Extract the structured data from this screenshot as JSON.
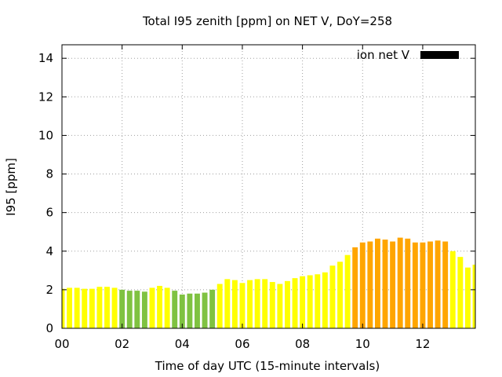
{
  "chart_data": {
    "type": "bar",
    "title": "Total I95 zenith [ppm] on NET V, DoY=258",
    "xlabel": "Time of day UTC (15-minute intervals)",
    "ylabel": "I95 [ppm]",
    "xlim": [
      0,
      13.75
    ],
    "ylim": [
      0,
      14.7
    ],
    "xticks": [
      "00",
      "02",
      "04",
      "06",
      "08",
      "10",
      "12"
    ],
    "xtick_values": [
      0,
      2,
      4,
      6,
      8,
      10,
      12
    ],
    "yticks": [
      0,
      2,
      4,
      6,
      8,
      10,
      12,
      14
    ],
    "grid": true,
    "legend": {
      "label": "ion net V",
      "color": "#000000",
      "placement": "top-right"
    },
    "bar_interval_hours": 0.25,
    "colors": {
      "yellow": "#ffff00",
      "green": "#7fc241",
      "orange": "#ffa500"
    },
    "x": [
      0.0,
      0.25,
      0.5,
      0.75,
      1.0,
      1.25,
      1.5,
      1.75,
      2.0,
      2.25,
      2.5,
      2.75,
      3.0,
      3.25,
      3.5,
      3.75,
      4.0,
      4.25,
      4.5,
      4.75,
      5.0,
      5.25,
      5.5,
      5.75,
      6.0,
      6.25,
      6.5,
      6.75,
      7.0,
      7.25,
      7.5,
      7.75,
      8.0,
      8.25,
      8.5,
      8.75,
      9.0,
      9.25,
      9.5,
      9.75,
      10.0,
      10.25,
      10.5,
      10.75,
      11.0,
      11.25,
      11.5,
      11.75,
      12.0,
      12.25,
      12.5,
      12.75,
      13.0,
      13.25,
      13.5,
      13.75
    ],
    "values": [
      2.05,
      2.1,
      2.1,
      2.05,
      2.05,
      2.15,
      2.15,
      2.1,
      2.0,
      1.95,
      1.95,
      1.9,
      2.1,
      2.2,
      2.1,
      1.95,
      1.75,
      1.8,
      1.8,
      1.85,
      2.0,
      2.3,
      2.55,
      2.5,
      2.35,
      2.5,
      2.55,
      2.55,
      2.4,
      2.3,
      2.45,
      2.6,
      2.7,
      2.75,
      2.8,
      2.9,
      3.25,
      3.45,
      3.8,
      4.2,
      4.45,
      4.5,
      4.65,
      4.6,
      4.5,
      4.7,
      4.65,
      4.45,
      4.45,
      4.5,
      4.55,
      4.5,
      4.0,
      3.7,
      3.15,
      3.3
    ],
    "bar_colors": [
      "yellow",
      "yellow",
      "yellow",
      "yellow",
      "yellow",
      "yellow",
      "yellow",
      "yellow",
      "green",
      "green",
      "green",
      "green",
      "yellow",
      "yellow",
      "yellow",
      "green",
      "green",
      "green",
      "green",
      "green",
      "green",
      "yellow",
      "yellow",
      "yellow",
      "yellow",
      "yellow",
      "yellow",
      "yellow",
      "yellow",
      "yellow",
      "yellow",
      "yellow",
      "yellow",
      "yellow",
      "yellow",
      "yellow",
      "yellow",
      "yellow",
      "yellow",
      "orange",
      "orange",
      "orange",
      "orange",
      "orange",
      "orange",
      "orange",
      "orange",
      "orange",
      "orange",
      "orange",
      "orange",
      "orange",
      "yellow",
      "yellow",
      "yellow",
      "yellow"
    ]
  }
}
